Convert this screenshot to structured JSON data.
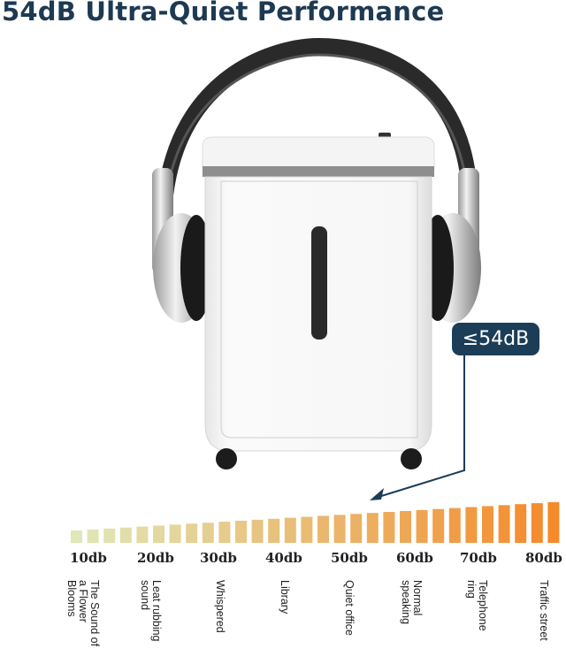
{
  "title": "54dB Ultra-Quiet Performance",
  "callout": {
    "label": "≤54dB",
    "color": "#1b3d58"
  },
  "scale": {
    "bar_count": 30,
    "color_start": "#dfe8b8",
    "color_end": "#f58a2a",
    "ticks": [
      "10db",
      "20db",
      "30db",
      "40db",
      "50db",
      "60db",
      "70db",
      "80db"
    ],
    "descriptions": [
      "The Sound of a Flower Blooms",
      "Leat rubbing sound",
      "Whispered",
      "Library",
      "Quiet office",
      "Normal speaking",
      "Telephone ring",
      "Traffic street"
    ]
  },
  "icons": [
    "headphones-icon",
    "paper-shredder-image",
    "arrow-icon"
  ]
}
